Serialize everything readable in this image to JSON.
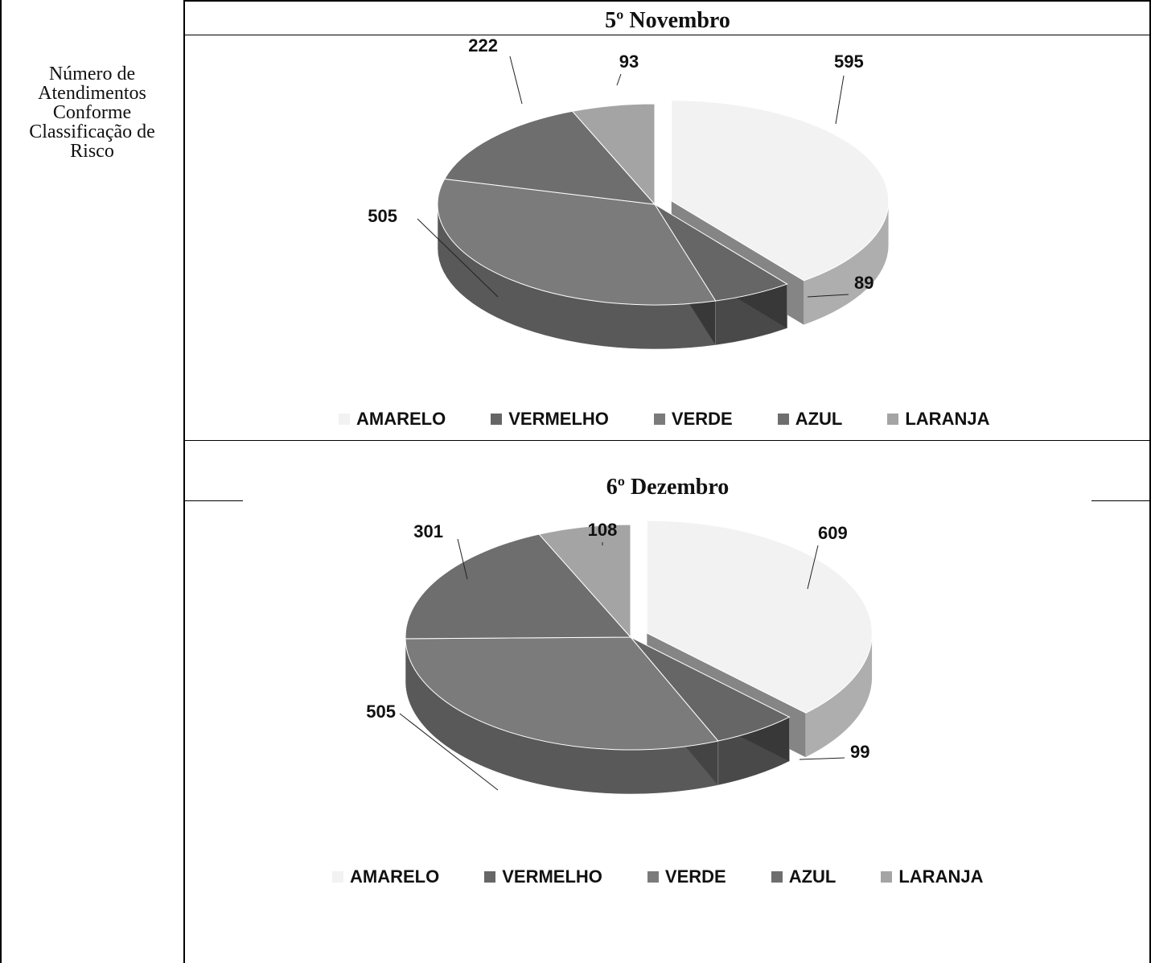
{
  "side_label": "Número de\nAtendimentos\nConforme\nClassificação de\nRisco",
  "colors": {
    "AMARELO": "#f2f2f2",
    "VERMELHO": "#666666",
    "VERDE": "#7b7b7b",
    "AZUL": "#6e6e6e",
    "LARANJA": "#a4a4a4"
  },
  "chart_data": [
    {
      "type": "pie",
      "title": "5º Novembro",
      "categories": [
        "AMARELO",
        "VERMELHO",
        "VERDE",
        "AZUL",
        "LARANJA"
      ],
      "values": [
        595,
        89,
        505,
        222,
        93
      ],
      "legend": "bottom"
    },
    {
      "type": "pie",
      "title": "6º Dezembro",
      "categories": [
        "AMARELO",
        "VERMELHO",
        "VERDE",
        "AZUL",
        "LARANJA"
      ],
      "values": [
        609,
        99,
        505,
        301,
        108
      ],
      "legend": "bottom"
    }
  ]
}
